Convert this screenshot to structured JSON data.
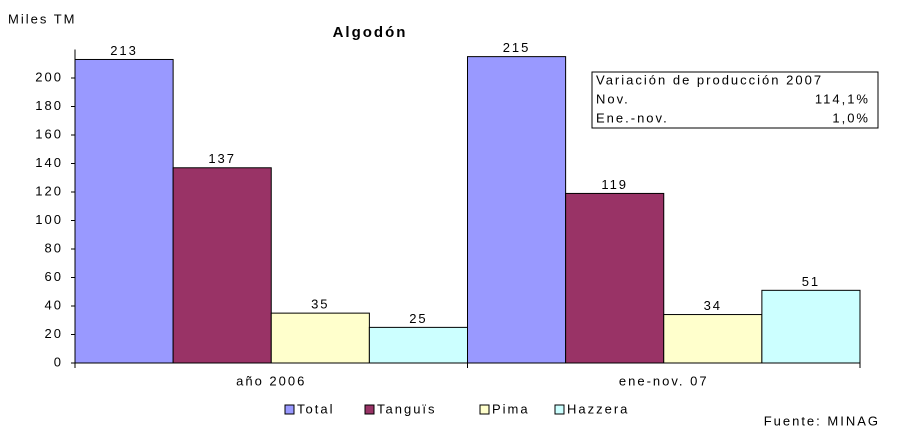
{
  "chart_data": {
    "type": "bar",
    "title": "Algodón",
    "y_label": "Miles TM",
    "source": "Fuente: MINAG",
    "categories": [
      "año 2006",
      "ene-nov. 07"
    ],
    "series": [
      {
        "name": "Total",
        "color": "#9999ff",
        "values": [
          213,
          215
        ]
      },
      {
        "name": "Tanguïs",
        "color": "#993366",
        "values": [
          137,
          119
        ]
      },
      {
        "name": "Pima",
        "color": "#ffffcc",
        "values": [
          35,
          34
        ]
      },
      {
        "name": "Hazzera",
        "color": "#ccffff",
        "values": [
          25,
          51
        ]
      }
    ],
    "ylim": [
      0,
      220
    ],
    "yticks": [
      0,
      20,
      40,
      60,
      80,
      100,
      120,
      140,
      160,
      180,
      200
    ],
    "grid": false,
    "legend": "bottom",
    "annotation": {
      "title": "Variación de producción 2007",
      "rows": [
        [
          "Nov.",
          "114,1%"
        ],
        [
          "Ene.-nov.",
          "1,0%"
        ]
      ]
    }
  }
}
